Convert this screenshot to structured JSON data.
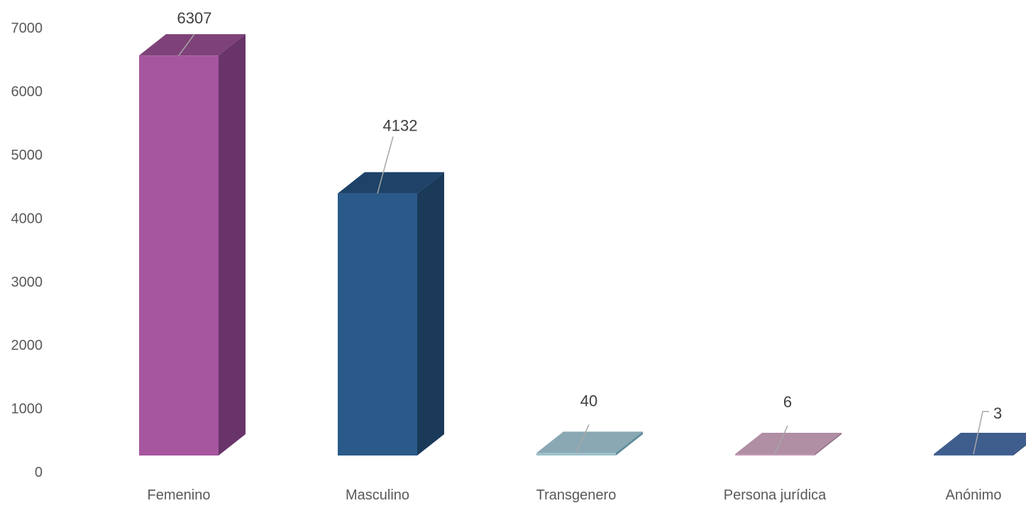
{
  "chart_data": {
    "type": "bar",
    "title": "",
    "xlabel": "",
    "ylabel": "",
    "categories": [
      "Femenino",
      "Masculino",
      "Transgenero",
      "Persona jurídica",
      "Anónimo"
    ],
    "values": [
      6307,
      4132,
      40,
      6,
      3
    ],
    "data_labels": [
      "6307",
      "4132",
      "40",
      "6",
      "3"
    ],
    "ylim": [
      0,
      7000
    ],
    "yticks": [
      0,
      1000,
      2000,
      3000,
      4000,
      5000,
      6000,
      7000
    ],
    "grid": false,
    "legend": "none",
    "style": "3d-columns",
    "colors": [
      {
        "front": "#A5569F",
        "side": "#69346A",
        "top": "#7E4278"
      },
      {
        "front": "#2A5A8A",
        "side": "#1B3A5A",
        "top": "#1E4268"
      },
      {
        "front": "#9FC1CB",
        "side": "#5E8A99",
        "top": "#8AA8B4"
      },
      {
        "front": "#C49BB5",
        "side": "#8A6A80",
        "top": "#B08EA4"
      },
      {
        "front": "#456596",
        "side": "#2E4770",
        "top": "#3F5D8D"
      }
    ]
  }
}
